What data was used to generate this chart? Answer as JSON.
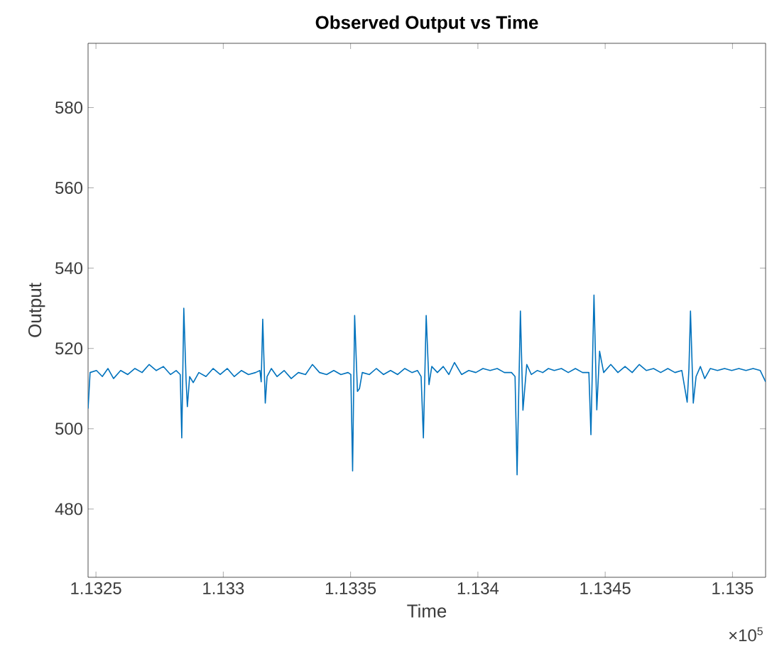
{
  "chart_data": {
    "type": "line",
    "title": "Observed Output vs Time",
    "xlabel": "Time",
    "ylabel": "Output",
    "annotations": [
      "×10$^{5}$"
    ],
    "color": "#0072bd",
    "marker": "none",
    "line_style": "solid",
    "xlim": [
      1.132469,
      1.13513
    ],
    "ylim": [
      463,
      596
    ],
    "xticks": [
      1.1325,
      1.133,
      1.1335,
      1.134,
      1.1345,
      1.135
    ],
    "yticks": [
      480,
      500,
      520,
      540,
      560,
      580
    ],
    "x": [
      1.132469,
      1.132477,
      1.132502,
      1.132525,
      1.132547,
      1.132569,
      1.132597,
      1.132625,
      1.132653,
      1.132681,
      1.132709,
      1.132737,
      1.132765,
      1.132793,
      1.132815,
      1.132831,
      1.132837,
      1.132845,
      1.132854,
      1.132859,
      1.132868,
      1.132882,
      1.132904,
      1.132932,
      1.13296,
      1.132988,
      1.133016,
      1.133043,
      1.133071,
      1.133099,
      1.133127,
      1.133144,
      1.133149,
      1.133155,
      1.133165,
      1.133172,
      1.133189,
      1.133211,
      1.133239,
      1.133267,
      1.133295,
      1.133323,
      1.13335,
      1.133378,
      1.133406,
      1.133434,
      1.133462,
      1.13349,
      1.133501,
      1.133508,
      1.133516,
      1.133527,
      1.133535,
      1.133546,
      1.133574,
      1.133601,
      1.133629,
      1.133657,
      1.133685,
      1.133713,
      1.133741,
      1.133763,
      1.133777,
      1.133786,
      1.133797,
      1.133808,
      1.133819,
      1.133841,
      1.133864,
      1.133886,
      1.133908,
      1.133936,
      1.133964,
      1.133992,
      1.13402,
      1.134048,
      1.134076,
      1.134104,
      1.134132,
      1.134146,
      1.134154,
      1.134167,
      1.134177,
      1.134192,
      1.13421,
      1.134233,
      1.134255,
      1.134277,
      1.1343,
      1.134328,
      1.134355,
      1.134383,
      1.134411,
      1.134436,
      1.134444,
      1.134456,
      1.134467,
      1.134478,
      1.134494,
      1.134522,
      1.13455,
      1.134578,
      1.134606,
      1.134634,
      1.134662,
      1.13469,
      1.134718,
      1.134746,
      1.134774,
      1.134801,
      1.134822,
      1.134829,
      1.134835,
      1.134846,
      1.134857,
      1.134874,
      1.134891,
      1.134913,
      1.134941,
      1.134969,
      1.134997,
      1.135025,
      1.135053,
      1.135081,
      1.135109,
      1.13513
    ],
    "values": [
      505,
      514,
      514.5,
      513,
      515,
      512.5,
      514.5,
      513.5,
      515,
      514,
      516,
      514.5,
      515.5,
      513.5,
      514.5,
      513.5,
      497.7,
      530,
      512,
      505.5,
      513,
      511.5,
      514,
      513,
      515,
      513.5,
      515,
      513,
      514.5,
      513.5,
      514,
      514.5,
      511.7,
      527.3,
      506.4,
      513,
      515,
      513,
      514.5,
      512.5,
      514,
      513.5,
      516,
      514,
      513.5,
      514.5,
      513.5,
      514,
      513.5,
      489.5,
      528.2,
      509.3,
      510,
      514,
      513.5,
      515,
      513.5,
      514.5,
      513.5,
      515,
      514,
      514.5,
      513,
      497.7,
      528.2,
      511,
      515.5,
      514,
      515.5,
      513.5,
      516.5,
      513.5,
      514.5,
      514,
      515,
      514.5,
      515,
      514,
      514,
      513,
      488.5,
      529.3,
      504.6,
      516,
      513.5,
      514.5,
      514,
      515,
      514.5,
      515,
      514,
      515,
      514,
      514,
      498.5,
      533.3,
      504.7,
      519.3,
      514,
      516,
      514,
      515.5,
      514,
      516,
      514.5,
      515,
      514,
      515,
      514,
      514.5,
      506.6,
      515,
      529.3,
      506.4,
      513,
      515.5,
      512.5,
      515,
      514.5,
      515,
      514.5,
      515,
      514.5,
      515,
      514.5,
      511.7
    ]
  }
}
